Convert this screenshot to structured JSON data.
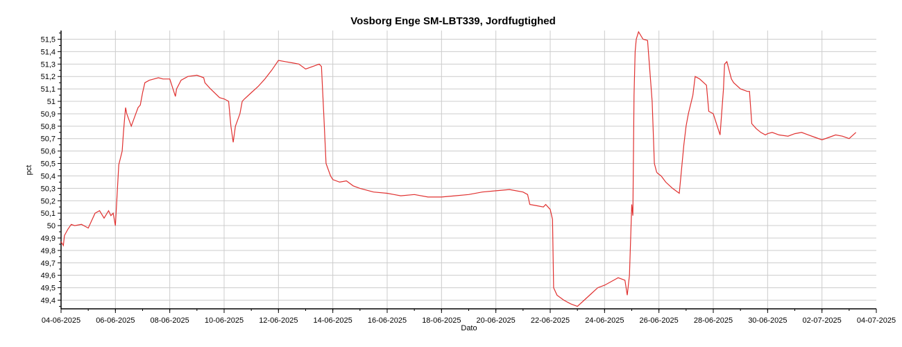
{
  "chart_data": {
    "type": "line",
    "title": "Vosborg Enge SM-LBT339, Jordfugtighed",
    "xlabel": "Dato",
    "ylabel": "pct",
    "xlim": [
      "2025-06-04",
      "2025-07-04"
    ],
    "ylim": [
      49.33,
      51.57
    ],
    "grid": true,
    "line_color": "#e0302f",
    "x_ticks": [
      "04-06-2025",
      "06-06-2025",
      "08-06-2025",
      "10-06-2025",
      "12-06-2025",
      "14-06-2025",
      "16-06-2025",
      "18-06-2025",
      "20-06-2025",
      "22-06-2025",
      "24-06-2025",
      "26-06-2025",
      "28-06-2025",
      "30-06-2025",
      "02-07-2025",
      "04-07-2025"
    ],
    "y_ticks": [
      "49,4",
      "49,5",
      "49,6",
      "49,7",
      "49,8",
      "49,9",
      "50",
      "50,1",
      "50,2",
      "50,3",
      "50,4",
      "50,5",
      "50,6",
      "50,7",
      "50,8",
      "50,9",
      "51",
      "51,1",
      "51,2",
      "51,3",
      "51,4",
      "51,5"
    ],
    "series": [
      {
        "x": [
          "2025-06-04 00:00",
          "2025-06-04 02:00",
          "2025-06-04 03:00",
          "2025-06-04 06:00",
          "2025-06-04 09:00",
          "2025-06-04 12:00",
          "2025-06-04 18:00",
          "2025-06-05 00:00",
          "2025-06-05 06:00",
          "2025-06-05 08:00",
          "2025-06-05 10:00",
          "2025-06-05 14:00",
          "2025-06-05 18:00",
          "2025-06-05 20:00",
          "2025-06-05 22:00",
          "2025-06-06 00:00",
          "2025-06-06 03:00",
          "2025-06-06 06:00",
          "2025-06-06 07:00",
          "2025-06-06 08:00",
          "2025-06-06 09:00",
          "2025-06-06 10:00",
          "2025-06-06 14:00",
          "2025-06-06 18:00",
          "2025-06-06 20:00",
          "2025-06-06 22:00",
          "2025-06-07 00:00",
          "2025-06-07 02:00",
          "2025-06-07 06:00",
          "2025-06-07 10:00",
          "2025-06-07 14:00",
          "2025-06-07 18:00",
          "2025-06-08 00:00",
          "2025-06-08 05:00",
          "2025-06-08 06:00",
          "2025-06-08 10:00",
          "2025-06-08 16:00",
          "2025-06-09 00:00",
          "2025-06-09 06:00",
          "2025-06-09 07:00",
          "2025-06-09 12:00",
          "2025-06-09 20:00",
          "2025-06-10 00:00",
          "2025-06-10 04:00",
          "2025-06-10 06:00",
          "2025-06-10 08:00",
          "2025-06-10 10:00",
          "2025-06-10 14:00",
          "2025-06-10 16:00",
          "2025-06-10 18:00",
          "2025-06-11 00:00",
          "2025-06-11 06:00",
          "2025-06-11 12:00",
          "2025-06-11 18:00",
          "2025-06-12 00:00",
          "2025-06-12 06:00",
          "2025-06-12 12:00",
          "2025-06-12 18:00",
          "2025-06-13 00:00",
          "2025-06-13 06:00",
          "2025-06-13 12:00",
          "2025-06-13 14:00",
          "2025-06-13 16:00",
          "2025-06-13 18:00",
          "2025-06-13 22:00",
          "2025-06-14 00:00",
          "2025-06-14 06:00",
          "2025-06-14 12:00",
          "2025-06-14 18:00",
          "2025-06-15 00:00",
          "2025-06-15 12:00",
          "2025-06-16 00:00",
          "2025-06-16 06:00",
          "2025-06-16 12:00",
          "2025-06-17 00:00",
          "2025-06-17 12:00",
          "2025-06-18 00:00",
          "2025-06-18 12:00",
          "2025-06-19 00:00",
          "2025-06-19 12:00",
          "2025-06-20 00:00",
          "2025-06-20 12:00",
          "2025-06-21 00:00",
          "2025-06-21 04:00",
          "2025-06-21 06:00",
          "2025-06-21 12:00",
          "2025-06-21 18:00",
          "2025-06-21 20:00",
          "2025-06-22 00:00",
          "2025-06-22 02:00",
          "2025-06-22 03:00",
          "2025-06-22 06:00",
          "2025-06-22 12:00",
          "2025-06-22 18:00",
          "2025-06-23 00:00",
          "2025-06-23 06:00",
          "2025-06-23 12:00",
          "2025-06-23 18:00",
          "2025-06-24 00:00",
          "2025-06-24 06:00",
          "2025-06-24 12:00",
          "2025-06-24 18:00",
          "2025-06-24 20:00",
          "2025-06-24 22:00",
          "2025-06-25 00:00",
          "2025-06-25 01:00",
          "2025-06-25 02:00",
          "2025-06-25 03:00",
          "2025-06-25 04:00",
          "2025-06-25 06:00",
          "2025-06-25 10:00",
          "2025-06-25 14:00",
          "2025-06-25 18:00",
          "2025-06-25 20:00",
          "2025-06-25 22:00",
          "2025-06-25 23:00",
          "2025-06-26 02:00",
          "2025-06-26 06:00",
          "2025-06-26 12:00",
          "2025-06-26 18:00",
          "2025-06-26 22:00",
          "2025-06-27 00:00",
          "2025-06-27 02:00",
          "2025-06-27 06:00",
          "2025-06-27 08:00",
          "2025-06-27 12:00",
          "2025-06-27 18:00",
          "2025-06-27 20:00",
          "2025-06-28 00:00",
          "2025-06-28 06:00",
          "2025-06-28 09:00",
          "2025-06-28 10:00",
          "2025-06-28 12:00",
          "2025-06-28 16:00",
          "2025-06-28 18:00",
          "2025-06-29 00:00",
          "2025-06-29 06:00",
          "2025-06-29 08:00",
          "2025-06-29 10:00",
          "2025-06-29 14:00",
          "2025-06-29 18:00",
          "2025-06-29 22:00",
          "2025-06-30 00:00",
          "2025-06-30 04:00",
          "2025-06-30 10:00",
          "2025-06-30 18:00",
          "2025-07-01 00:00",
          "2025-07-01 06:00",
          "2025-07-01 12:00",
          "2025-07-01 18:00",
          "2025-07-02 00:00",
          "2025-07-02 06:00",
          "2025-07-02 12:00",
          "2025-07-02 18:00",
          "2025-07-03 00:00",
          "2025-07-03 06:00"
        ],
        "values": [
          49.87,
          49.84,
          49.92,
          49.97,
          50.01,
          50.0,
          50.01,
          49.98,
          50.1,
          50.11,
          50.12,
          50.06,
          50.12,
          50.08,
          50.1,
          50.0,
          50.49,
          50.6,
          50.74,
          50.85,
          50.95,
          50.9,
          50.8,
          50.9,
          50.95,
          50.97,
          51.07,
          51.15,
          51.17,
          51.18,
          51.19,
          51.18,
          51.18,
          51.04,
          51.1,
          51.17,
          51.2,
          51.21,
          51.19,
          51.15,
          51.1,
          51.03,
          51.02,
          51.0,
          50.8,
          50.67,
          50.8,
          50.9,
          51.0,
          51.02,
          51.07,
          51.12,
          51.18,
          51.25,
          51.33,
          51.32,
          51.31,
          51.3,
          51.26,
          51.28,
          51.3,
          51.28,
          50.9,
          50.5,
          50.4,
          50.37,
          50.35,
          50.36,
          50.32,
          50.3,
          50.27,
          50.26,
          50.25,
          50.24,
          50.25,
          50.23,
          50.23,
          50.24,
          50.25,
          50.27,
          50.28,
          50.29,
          50.27,
          50.25,
          50.17,
          50.16,
          50.15,
          50.17,
          50.13,
          50.05,
          49.5,
          49.44,
          49.4,
          49.37,
          49.35,
          49.4,
          49.45,
          49.5,
          49.52,
          49.55,
          49.58,
          49.56,
          49.44,
          49.6,
          50.17,
          50.08,
          51.05,
          51.4,
          51.5,
          51.56,
          51.5,
          51.49,
          51.0,
          50.5,
          50.43,
          50.42,
          50.4,
          50.35,
          50.3,
          50.26,
          50.65,
          50.8,
          50.9,
          51.05,
          51.2,
          51.18,
          51.13,
          50.92,
          50.9,
          50.73,
          51.1,
          51.3,
          51.32,
          51.18,
          51.15,
          51.1,
          51.08,
          51.08,
          50.82,
          50.78,
          50.75,
          50.73,
          50.74,
          50.75,
          50.73,
          50.72,
          50.74,
          50.75,
          50.73,
          50.71,
          50.69,
          50.71,
          50.73,
          50.72,
          50.7,
          50.75
        ]
      }
    ]
  }
}
